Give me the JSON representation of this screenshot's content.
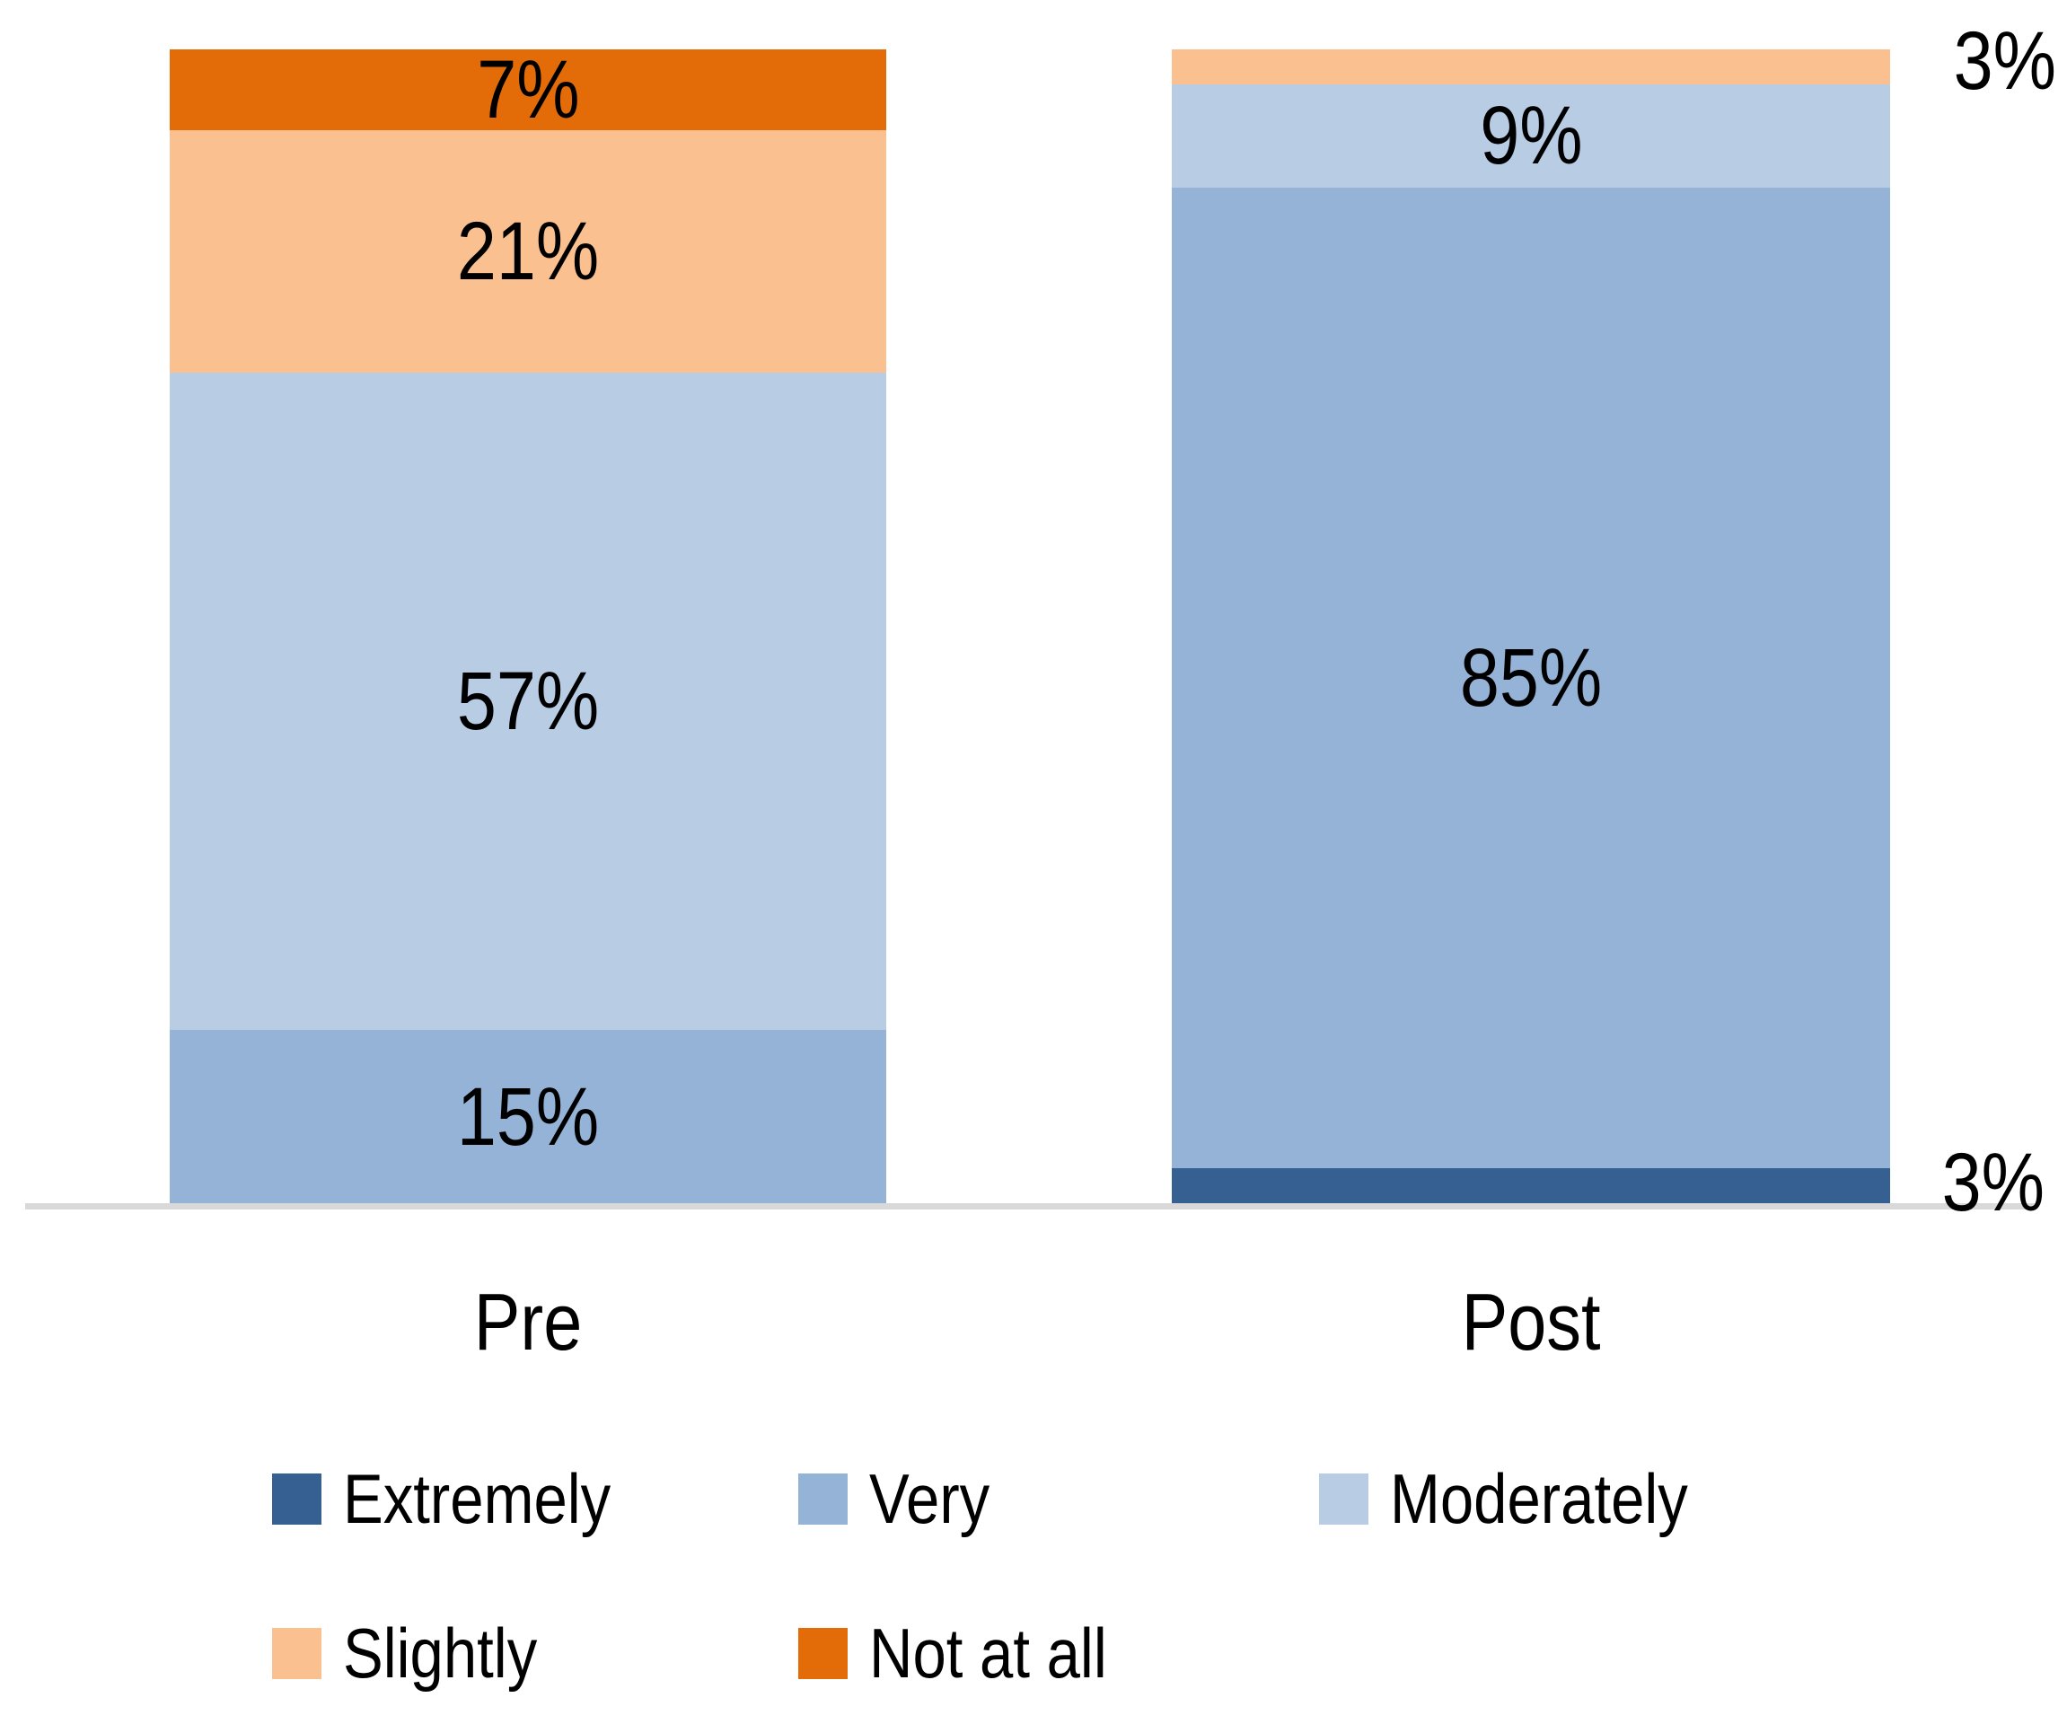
{
  "chart_data": {
    "type": "bar",
    "subtype": "stacked-100-percent",
    "orientation": "vertical",
    "title": "",
    "xlabel": "",
    "ylabel": "",
    "ylim": [
      0,
      100
    ],
    "grid": false,
    "axis_line_color": "#D9D9D9",
    "label_color": "#000000",
    "background_color": "#ffffff",
    "categories": [
      "Pre",
      "Post"
    ],
    "series": [
      {
        "name": "Extremely",
        "color": "#376092",
        "values": [
          0,
          3
        ],
        "inside_labels": [
          "",
          ""
        ]
      },
      {
        "name": "Very",
        "color": "#95B3D7",
        "values": [
          15,
          85
        ],
        "inside_labels": [
          "15%",
          "85%"
        ]
      },
      {
        "name": "Moderately",
        "color": "#B8CCE4",
        "values": [
          57,
          9
        ],
        "inside_labels": [
          "57%",
          "9%"
        ]
      },
      {
        "name": "Slightly",
        "color": "#FAC090",
        "values": [
          21,
          3
        ],
        "inside_labels": [
          "21%",
          ""
        ]
      },
      {
        "name": "Not at all",
        "color": "#E36C09",
        "values": [
          7,
          0
        ],
        "inside_labels": [
          "7%",
          ""
        ]
      }
    ],
    "stack_order_top_to_bottom": [
      "Not at all",
      "Slightly",
      "Moderately",
      "Very",
      "Extremely"
    ],
    "outside_labels": [
      {
        "text": "3%",
        "refers_to": "Post / Slightly",
        "position": "top-right"
      },
      {
        "text": "3%",
        "refers_to": "Post / Extremely",
        "position": "bottom-right"
      }
    ],
    "legend_position": "bottom",
    "legend_rows": [
      [
        "Extremely",
        "Very",
        "Moderately"
      ],
      [
        "Slightly",
        "Not at all"
      ]
    ]
  }
}
